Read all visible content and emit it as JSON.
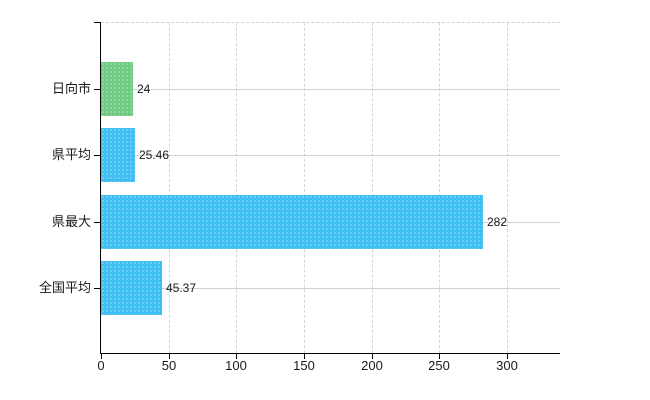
{
  "chart_data": {
    "type": "bar",
    "orientation": "horizontal",
    "title": "",
    "xlabel": "",
    "ylabel": "",
    "categories": [
      "日向市",
      "県平均",
      "県最大",
      "全国平均"
    ],
    "values": [
      24,
      25.46,
      282,
      45.37
    ],
    "value_labels": [
      "24",
      "25.46",
      "282",
      "45.37"
    ],
    "bar_colors": [
      "#6ecb81",
      "#3ebef2",
      "#3ebef2",
      "#3ebef2"
    ],
    "xlim": [
      0,
      339
    ],
    "x_ticks": [
      0,
      50,
      100,
      150,
      200,
      250,
      300
    ],
    "grid": true,
    "legend": false
  },
  "colors": {
    "bar_green": "#6ecb81",
    "bar_blue": "#3ebef2",
    "axis": "#000000",
    "vertical_gridline": "#d9d3d9",
    "horizontal_gridline": "#ccd6cc",
    "text": "#1a1a1a",
    "background": "#ffffff"
  }
}
